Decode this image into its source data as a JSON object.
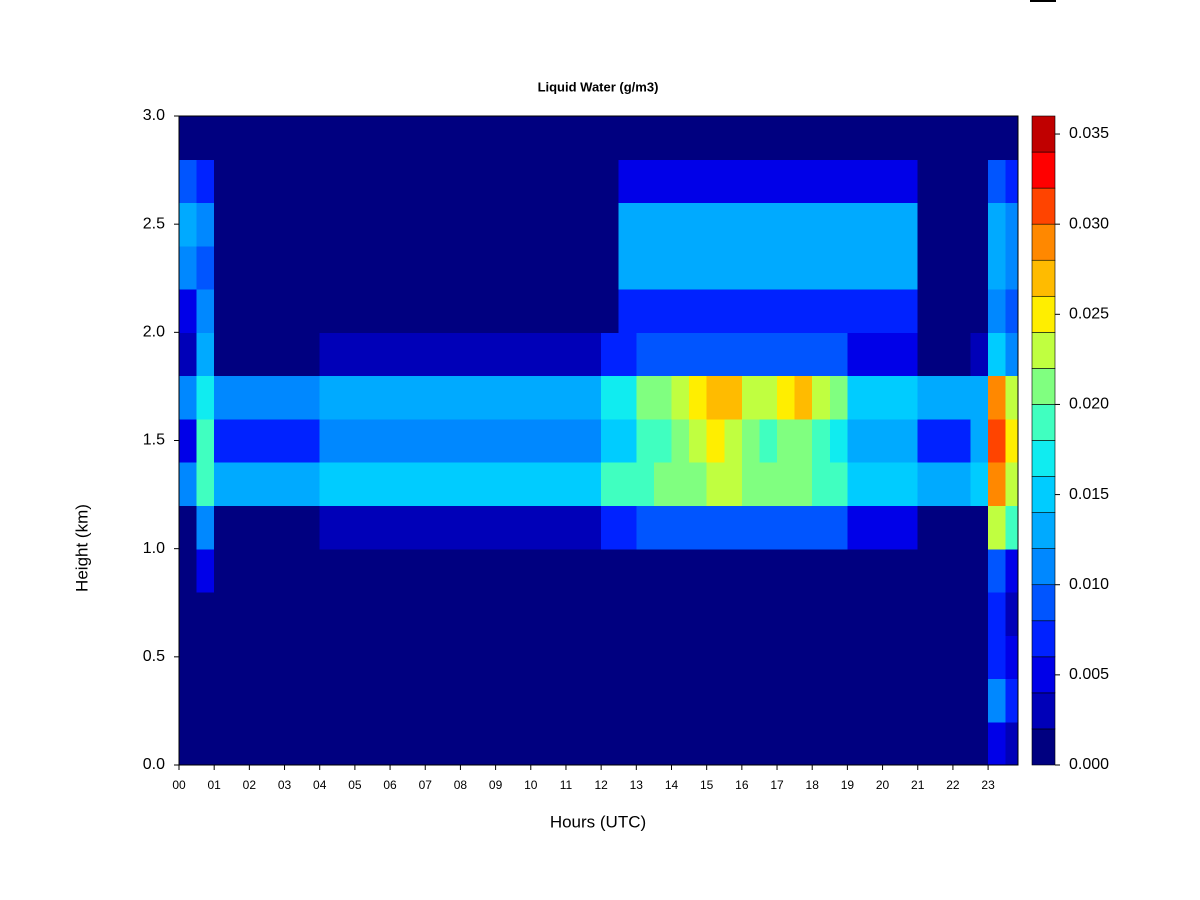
{
  "chart_data": {
    "type": "heatmap",
    "title": "Liquid Water (g/m3)",
    "x_label": "Hours (UTC)",
    "y_label": "Height (km)",
    "xlim": [
      0,
      23.85
    ],
    "ylim": [
      0,
      3.0
    ],
    "xticks": [
      {
        "value": 0,
        "label": "00"
      },
      {
        "value": 1,
        "label": "01"
      },
      {
        "value": 2,
        "label": "02"
      },
      {
        "value": 3,
        "label": "03"
      },
      {
        "value": 4,
        "label": "04"
      },
      {
        "value": 5,
        "label": "05"
      },
      {
        "value": 6,
        "label": "06"
      },
      {
        "value": 7,
        "label": "07"
      },
      {
        "value": 8,
        "label": "08"
      },
      {
        "value": 9,
        "label": "09"
      },
      {
        "value": 10,
        "label": "10"
      },
      {
        "value": 11,
        "label": "11"
      },
      {
        "value": 12,
        "label": "12"
      },
      {
        "value": 13,
        "label": "13"
      },
      {
        "value": 14,
        "label": "14"
      },
      {
        "value": 15,
        "label": "15"
      },
      {
        "value": 16,
        "label": "16"
      },
      {
        "value": 17,
        "label": "17"
      },
      {
        "value": 18,
        "label": "18"
      },
      {
        "value": 19,
        "label": "19"
      },
      {
        "value": 20,
        "label": "20"
      },
      {
        "value": 21,
        "label": "21"
      },
      {
        "value": 22,
        "label": "22"
      },
      {
        "value": 23,
        "label": "23"
      }
    ],
    "yticks": [
      {
        "value": 0,
        "label": "0.0"
      },
      {
        "value": 0.5,
        "label": "0.5"
      },
      {
        "value": 1,
        "label": "1.0"
      },
      {
        "value": 1.5,
        "label": "1.5"
      },
      {
        "value": 2,
        "label": "2.0"
      },
      {
        "value": 2.5,
        "label": "2.5"
      },
      {
        "value": 3,
        "label": "3.0"
      }
    ],
    "x_bins": [
      0,
      0.5,
      1,
      1.5,
      2,
      2.5,
      3,
      3.5,
      4,
      4.5,
      5,
      5.5,
      6,
      6.5,
      7,
      7.5,
      8,
      8.5,
      9,
      9.5,
      10,
      10.5,
      11,
      11.5,
      12,
      12.5,
      13,
      13.5,
      14,
      14.5,
      15,
      15.5,
      16,
      16.5,
      17,
      17.5,
      18,
      18.5,
      19,
      19.5,
      20,
      20.5,
      21,
      21.5,
      22,
      22.5,
      23,
      23.5,
      23.85
    ],
    "y_bins": [
      0,
      0.2,
      0.4,
      0.6,
      0.8,
      1.0,
      1.2,
      1.4,
      1.6,
      1.8,
      2.0,
      2.2,
      2.4,
      2.6,
      2.8,
      3.0
    ],
    "z": [
      [
        0,
        0,
        0,
        0,
        0,
        0,
        0,
        0,
        0,
        0,
        0,
        0,
        0,
        0,
        0,
        0,
        0,
        0,
        0,
        0,
        0,
        0,
        0,
        0,
        0,
        0,
        0,
        0,
        0,
        0,
        0,
        0,
        0,
        0,
        0,
        0,
        0,
        0,
        0,
        0,
        0,
        0,
        0,
        0,
        0,
        0,
        0.004,
        0.002
      ],
      [
        0,
        0,
        0,
        0,
        0,
        0,
        0,
        0,
        0,
        0,
        0,
        0,
        0,
        0,
        0,
        0,
        0,
        0,
        0,
        0,
        0,
        0,
        0,
        0,
        0,
        0,
        0,
        0,
        0,
        0,
        0,
        0,
        0,
        0,
        0,
        0,
        0,
        0,
        0,
        0,
        0,
        0,
        0,
        0,
        0,
        0,
        0.01,
        0.006
      ],
      [
        0,
        0,
        0,
        0,
        0,
        0,
        0,
        0,
        0,
        0,
        0,
        0,
        0,
        0,
        0,
        0,
        0,
        0,
        0,
        0,
        0,
        0,
        0,
        0,
        0,
        0,
        0,
        0,
        0,
        0,
        0,
        0,
        0,
        0,
        0,
        0,
        0,
        0,
        0,
        0,
        0,
        0,
        0,
        0,
        0,
        0,
        0.006,
        0.004
      ],
      [
        0,
        0,
        0,
        0,
        0,
        0,
        0,
        0,
        0,
        0,
        0,
        0,
        0,
        0,
        0,
        0,
        0,
        0,
        0,
        0,
        0,
        0,
        0,
        0,
        0,
        0,
        0,
        0,
        0,
        0,
        0,
        0,
        0,
        0,
        0,
        0,
        0,
        0,
        0,
        0,
        0,
        0,
        0,
        0,
        0,
        0,
        0.006,
        0.002
      ],
      [
        0,
        0.004,
        0,
        0,
        0,
        0,
        0,
        0,
        0,
        0,
        0,
        0,
        0,
        0,
        0,
        0,
        0,
        0,
        0,
        0,
        0,
        0,
        0,
        0,
        0,
        0,
        0,
        0,
        0,
        0,
        0,
        0,
        0,
        0,
        0,
        0,
        0,
        0,
        0,
        0,
        0,
        0,
        0,
        0,
        0,
        0,
        0.008,
        0.004
      ],
      [
        0,
        0.01,
        0,
        0,
        0,
        0,
        0,
        0,
        0.002,
        0.002,
        0.002,
        0.002,
        0.002,
        0.002,
        0.002,
        0.002,
        0.002,
        0.002,
        0.002,
        0.002,
        0.002,
        0.002,
        0.002,
        0.002,
        0.006,
        0.006,
        0.008,
        0.008,
        0.008,
        0.008,
        0.008,
        0.008,
        0.008,
        0.008,
        0.008,
        0.008,
        0.008,
        0.008,
        0.004,
        0.004,
        0.004,
        0.004,
        0,
        0,
        0,
        0,
        0.022,
        0.018
      ],
      [
        0.01,
        0.018,
        0.012,
        0.012,
        0.012,
        0.012,
        0.012,
        0.012,
        0.014,
        0.014,
        0.014,
        0.014,
        0.014,
        0.014,
        0.014,
        0.014,
        0.014,
        0.014,
        0.014,
        0.014,
        0.014,
        0.014,
        0.014,
        0.014,
        0.018,
        0.018,
        0.018,
        0.02,
        0.02,
        0.02,
        0.022,
        0.022,
        0.02,
        0.02,
        0.02,
        0.02,
        0.018,
        0.018,
        0.014,
        0.014,
        0.014,
        0.014,
        0.012,
        0.012,
        0.012,
        0.014,
        0.028,
        0.022
      ],
      [
        0.004,
        0.018,
        0.006,
        0.006,
        0.006,
        0.006,
        0.006,
        0.006,
        0.01,
        0.01,
        0.01,
        0.01,
        0.01,
        0.01,
        0.01,
        0.01,
        0.01,
        0.01,
        0.01,
        0.01,
        0.01,
        0.01,
        0.01,
        0.01,
        0.014,
        0.014,
        0.018,
        0.018,
        0.02,
        0.022,
        0.024,
        0.022,
        0.02,
        0.018,
        0.02,
        0.02,
        0.018,
        0.016,
        0.012,
        0.012,
        0.012,
        0.012,
        0.006,
        0.006,
        0.006,
        0.012,
        0.03,
        0.024
      ],
      [
        0.01,
        0.016,
        0.01,
        0.01,
        0.01,
        0.01,
        0.01,
        0.01,
        0.012,
        0.012,
        0.012,
        0.012,
        0.012,
        0.012,
        0.012,
        0.012,
        0.012,
        0.012,
        0.012,
        0.012,
        0.012,
        0.012,
        0.012,
        0.012,
        0.016,
        0.016,
        0.02,
        0.02,
        0.022,
        0.024,
        0.026,
        0.026,
        0.022,
        0.022,
        0.024,
        0.026,
        0.022,
        0.02,
        0.014,
        0.014,
        0.014,
        0.014,
        0.012,
        0.012,
        0.012,
        0.012,
        0.028,
        0.022
      ],
      [
        0.002,
        0.012,
        0,
        0,
        0,
        0,
        0,
        0,
        0.002,
        0.002,
        0.002,
        0.002,
        0.002,
        0.002,
        0.002,
        0.002,
        0.002,
        0.002,
        0.002,
        0.002,
        0.002,
        0.002,
        0.002,
        0.002,
        0.006,
        0.006,
        0.008,
        0.008,
        0.008,
        0.008,
        0.008,
        0.008,
        0.008,
        0.008,
        0.008,
        0.008,
        0.008,
        0.008,
        0.004,
        0.004,
        0.004,
        0.004,
        0,
        0,
        0,
        0.002,
        0.014,
        0.01
      ],
      [
        0.004,
        0.01,
        0,
        0,
        0,
        0,
        0,
        0,
        0,
        0,
        0,
        0,
        0,
        0,
        0,
        0,
        0,
        0,
        0,
        0,
        0,
        0,
        0,
        0,
        0,
        0.006,
        0.006,
        0.006,
        0.006,
        0.006,
        0.006,
        0.006,
        0.006,
        0.006,
        0.006,
        0.006,
        0.006,
        0.006,
        0.006,
        0.006,
        0.006,
        0.006,
        0,
        0,
        0,
        0,
        0.01,
        0.008
      ],
      [
        0.01,
        0.008,
        0,
        0,
        0,
        0,
        0,
        0,
        0,
        0,
        0,
        0,
        0,
        0,
        0,
        0,
        0,
        0,
        0,
        0,
        0,
        0,
        0,
        0,
        0,
        0.012,
        0.012,
        0.012,
        0.012,
        0.012,
        0.012,
        0.012,
        0.012,
        0.012,
        0.012,
        0.012,
        0.012,
        0.012,
        0.012,
        0.012,
        0.012,
        0.012,
        0,
        0,
        0,
        0,
        0.012,
        0.01
      ],
      [
        0.012,
        0.01,
        0,
        0,
        0,
        0,
        0,
        0,
        0,
        0,
        0,
        0,
        0,
        0,
        0,
        0,
        0,
        0,
        0,
        0,
        0,
        0,
        0,
        0,
        0,
        0.012,
        0.012,
        0.012,
        0.012,
        0.012,
        0.012,
        0.012,
        0.012,
        0.012,
        0.012,
        0.012,
        0.012,
        0.012,
        0.012,
        0.012,
        0.012,
        0.012,
        0,
        0,
        0,
        0,
        0.012,
        0.01
      ],
      [
        0.008,
        0.006,
        0,
        0,
        0,
        0,
        0,
        0,
        0,
        0,
        0,
        0,
        0,
        0,
        0,
        0,
        0,
        0,
        0,
        0,
        0,
        0,
        0,
        0,
        0,
        0.004,
        0.004,
        0.004,
        0.004,
        0.004,
        0.004,
        0.004,
        0.004,
        0.004,
        0.004,
        0.004,
        0.004,
        0.004,
        0.004,
        0.004,
        0.004,
        0.004,
        0,
        0,
        0,
        0,
        0.008,
        0.006
      ],
      [
        0,
        0,
        0,
        0,
        0,
        0,
        0,
        0,
        0,
        0,
        0,
        0,
        0,
        0,
        0,
        0,
        0,
        0,
        0,
        0,
        0,
        0,
        0,
        0,
        0,
        0,
        0,
        0,
        0,
        0,
        0,
        0,
        0,
        0,
        0,
        0,
        0,
        0,
        0,
        0,
        0,
        0,
        0,
        0,
        0,
        0,
        0,
        0
      ]
    ],
    "levels": [
      0,
      0.002,
      0.004,
      0.006,
      0.008,
      0.01,
      0.012,
      0.014,
      0.016,
      0.018,
      0.02,
      0.022,
      0.024,
      0.026,
      0.028,
      0.03,
      0.032,
      0.034,
      0.036
    ],
    "colors": [
      "#000080",
      "#0000b8",
      "#0000e8",
      "#0022ff",
      "#0055ff",
      "#0088ff",
      "#00aaff",
      "#00ccff",
      "#10ecf0",
      "#40ffc0",
      "#80ff80",
      "#c0ff40",
      "#ffee00",
      "#ffbb00",
      "#ff8800",
      "#ff4400",
      "#ff0000",
      "#c00000",
      "#800000"
    ],
    "colorbar_ticks": [
      {
        "value": 0,
        "label": "0.000"
      },
      {
        "value": 0.005,
        "label": "0.005"
      },
      {
        "value": 0.01,
        "label": "0.010"
      },
      {
        "value": 0.015,
        "label": "0.015"
      },
      {
        "value": 0.02,
        "label": "0.020"
      },
      {
        "value": 0.025,
        "label": "0.025"
      },
      {
        "value": 0.03,
        "label": "0.030"
      },
      {
        "value": 0.035,
        "label": "0.035"
      }
    ]
  }
}
